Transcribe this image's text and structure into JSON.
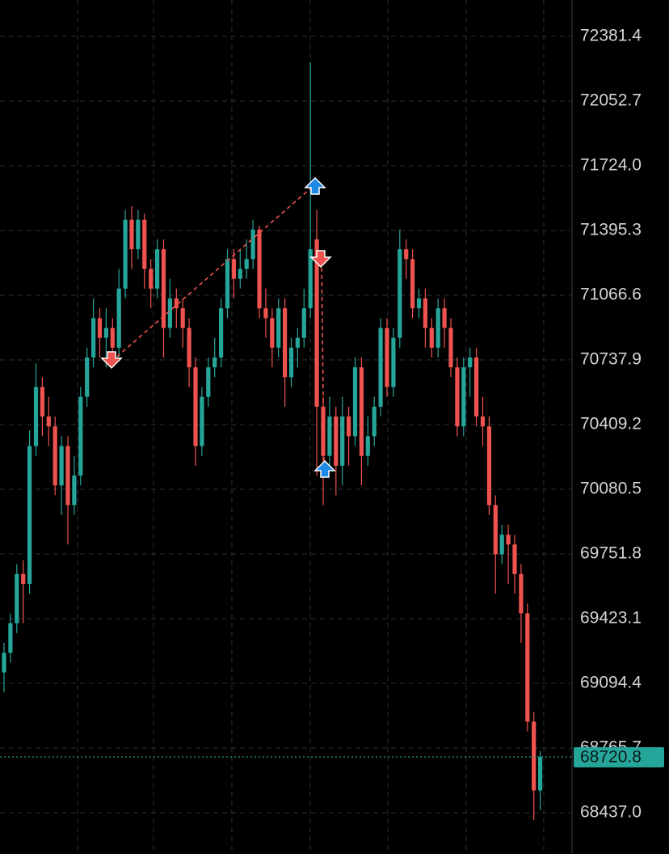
{
  "chart_data": {
    "type": "candlestick",
    "open": [
      69150,
      69250,
      69400,
      69650,
      69600,
      70300,
      70600,
      70450,
      70400,
      70100,
      70300,
      70000,
      70150,
      70550,
      70750,
      70950,
      70850,
      70900,
      70800,
      71100,
      71450,
      71300,
      71450,
      71200,
      71100,
      71300,
      70900,
      71050,
      71000,
      70900,
      70700,
      70300,
      70550,
      70700,
      70750,
      71000,
      71250,
      71150,
      71200,
      71250,
      71400,
      71000,
      70950,
      70800,
      71000,
      70650,
      70800,
      70850,
      71000,
      71350,
      70500,
      70250,
      70450,
      70200,
      70450,
      70350,
      70700,
      70250,
      70350,
      70500,
      70900,
      70600,
      70850,
      71300,
      71250,
      71000,
      71050,
      70900,
      70800,
      71000,
      70900,
      70700,
      70400,
      70700,
      70750,
      70450,
      70400,
      70000,
      69750,
      69850,
      69800,
      69650,
      69450,
      68900,
      68550
    ],
    "high": [
      69300,
      69450,
      69700,
      69720,
      70380,
      70720,
      70650,
      70550,
      70450,
      70350,
      70350,
      70250,
      70600,
      70800,
      71050,
      71000,
      71000,
      70950,
      71200,
      71500,
      71520,
      71500,
      71480,
      71250,
      71350,
      71350,
      71150,
      71100,
      71050,
      70950,
      70750,
      70600,
      70750,
      70850,
      71050,
      71300,
      71300,
      71300,
      71350,
      71450,
      71420,
      71100,
      71000,
      71050,
      71050,
      70850,
      70900,
      71100,
      72250,
      71500,
      70550,
      70550,
      70500,
      70550,
      70500,
      70750,
      70750,
      70450,
      70550,
      70950,
      70950,
      70900,
      71400,
      71350,
      71300,
      71100,
      71100,
      70950,
      71050,
      71050,
      70950,
      70750,
      70750,
      70800,
      70800,
      70550,
      70450,
      70050,
      69900,
      69900,
      69850,
      69700,
      69500,
      68950,
      68750
    ],
    "low": [
      69050,
      69200,
      69350,
      69400,
      69550,
      70250,
      70350,
      70300,
      70050,
      69950,
      69800,
      69950,
      70100,
      70500,
      70700,
      70750,
      70700,
      70700,
      70750,
      71050,
      71200,
      71250,
      71100,
      71000,
      71050,
      70750,
      70850,
      70900,
      70800,
      70600,
      70200,
      70250,
      70500,
      70650,
      70700,
      70950,
      71050,
      71100,
      71150,
      71200,
      70950,
      70850,
      70700,
      70750,
      70500,
      70600,
      70700,
      70800,
      70950,
      70150,
      70000,
      70200,
      70050,
      70100,
      70200,
      70300,
      70100,
      70200,
      70300,
      70450,
      70550,
      70550,
      70800,
      71150,
      70950,
      70950,
      70800,
      70750,
      70750,
      70800,
      70650,
      70350,
      70350,
      70550,
      70400,
      70300,
      69950,
      69550,
      69700,
      69600,
      69550,
      69300,
      68850,
      68400,
      68450
    ],
    "close": [
      69250,
      69400,
      69650,
      69600,
      70300,
      70600,
      70450,
      70400,
      70100,
      70300,
      70000,
      70150,
      70550,
      70750,
      70950,
      70850,
      70900,
      70800,
      71100,
      71450,
      71300,
      71450,
      71200,
      71100,
      71300,
      70900,
      71050,
      71000,
      70900,
      70700,
      70300,
      70550,
      70700,
      70750,
      71000,
      71250,
      71150,
      71200,
      71250,
      71400,
      71000,
      70950,
      70800,
      71000,
      70650,
      70800,
      70850,
      71000,
      71300,
      70500,
      70250,
      70450,
      70200,
      70450,
      70350,
      70700,
      70250,
      70350,
      70500,
      70900,
      70600,
      70850,
      71300,
      71250,
      71000,
      71050,
      70900,
      70800,
      71000,
      70900,
      70700,
      70400,
      70700,
      70750,
      70450,
      70400,
      70000,
      69750,
      69850,
      69800,
      69650,
      69450,
      68900,
      68550,
      68720.8
    ],
    "up_color": "#26a69a",
    "down_color": "#ef5350",
    "ylim": [
      68227.4,
      72566.3
    ],
    "yticks": [
      72381.4,
      72052.7,
      {
        "value": 71724.0,
        "label": "71724.0"
      },
      71395.3,
      71066.6,
      70737.9,
      70409.2,
      70080.5,
      69751.8,
      69423.1,
      69094.4,
      68765.7,
      {
        "value": 68437.0,
        "label": "68437.0"
      }
    ],
    "grid": true,
    "last_price": 68720.8
  }
}
